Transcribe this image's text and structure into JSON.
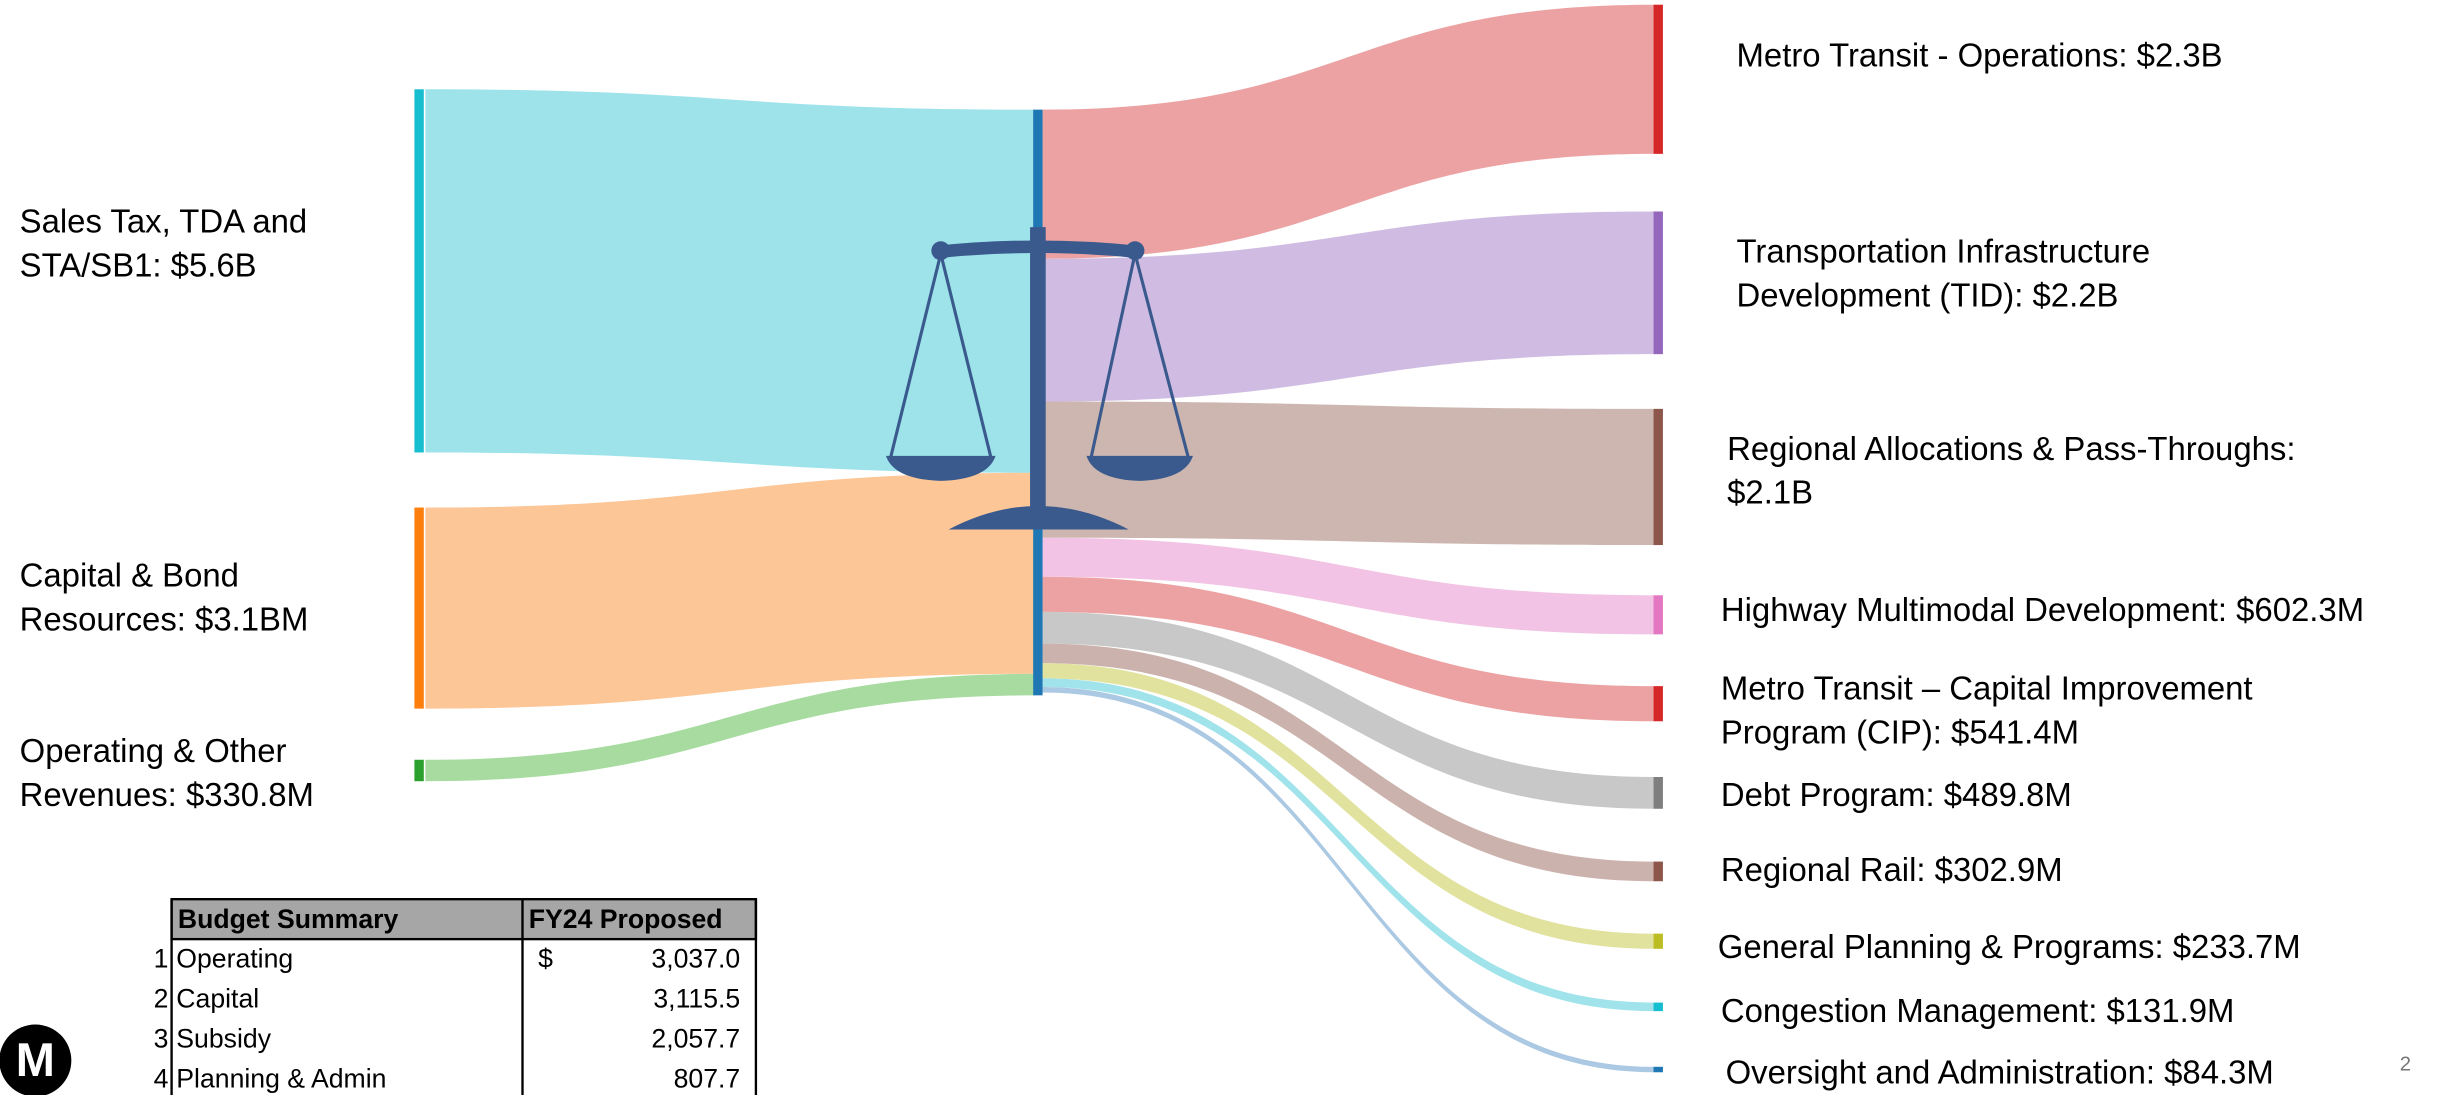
{
  "chart_data": {
    "type": "sankey",
    "sources": [
      {
        "label": [
          "Sales Tax, TDA and",
          "STA/SB1: $5.6B"
        ],
        "value": 5600,
        "color": "#17becf",
        "fill": "#98e2e8"
      },
      {
        "label": [
          "Capital & Bond",
          "Resources: $3.1BM"
        ],
        "value": 3100,
        "color": "#ff7f0e",
        "fill": "#fdc391"
      },
      {
        "label": [
          "Operating & Other",
          "Revenues: $330.8M"
        ],
        "value": 330.8,
        "color": "#2ca02c",
        "fill": "#a2d99b"
      }
    ],
    "center_color": "#1f77b4",
    "targets": [
      {
        "label": [
          "Metro Transit - Operations: $2.3B"
        ],
        "value": 2300,
        "color": "#d62728",
        "fill": "#eb9d9e"
      },
      {
        "label": [
          "Transportation Infrastructure",
          "Development (TID): $2.2B"
        ],
        "value": 2200,
        "color": "#9467bd",
        "fill": "#cdb8e0"
      },
      {
        "label": [
          "Regional Allocations & Pass-Throughs:",
          "$2.1B"
        ],
        "value": 2100,
        "color": "#8c564b",
        "fill": "#c9b2ab"
      },
      {
        "label": [
          "Highway Multimodal Development: $602.3M"
        ],
        "value": 602.3,
        "color": "#e377c2",
        "fill": "#f1c0e3"
      },
      {
        "label": [
          "Metro Transit – Capital Improvement",
          "Program (CIP): $541.4M"
        ],
        "value": 541.4,
        "color": "#d62728",
        "fill": "#eb9d9e"
      },
      {
        "label": [
          "Debt Program: $489.8M"
        ],
        "value": 489.8,
        "color": "#7f7f7f",
        "fill": "#c5c5c5"
      },
      {
        "label": [
          "Regional Rail: $302.9M"
        ],
        "value": 302.9,
        "color": "#8c564b",
        "fill": "#c9aea8"
      },
      {
        "label": [
          "General Planning & Programs: $233.7M"
        ],
        "value": 233.7,
        "color": "#bcbd22",
        "fill": "#e0e09a"
      },
      {
        "label": [
          "Congestion Management: $131.9M"
        ],
        "value": 131.9,
        "color": "#17becf",
        "fill": "#9be1ea"
      },
      {
        "label": [
          "Oversight and Administration: $84.3M"
        ],
        "value": 84.3,
        "color": "#1f77b4",
        "fill": "#a6c6e0"
      }
    ]
  },
  "table": {
    "header": [
      "Budget Summary",
      "FY24 Proposed"
    ],
    "rows": [
      {
        "n": "1",
        "item": "Operating",
        "currency": "$",
        "amount": "3,037.0"
      },
      {
        "n": "2",
        "item": "Capital",
        "amount": "3,115.5"
      },
      {
        "n": "3",
        "item": "Subsidy",
        "amount": "2,057.7"
      },
      {
        "n": "4",
        "item": "Planning & Admin",
        "amount": "807.7"
      }
    ]
  },
  "page_number": "2",
  "logo": "M"
}
